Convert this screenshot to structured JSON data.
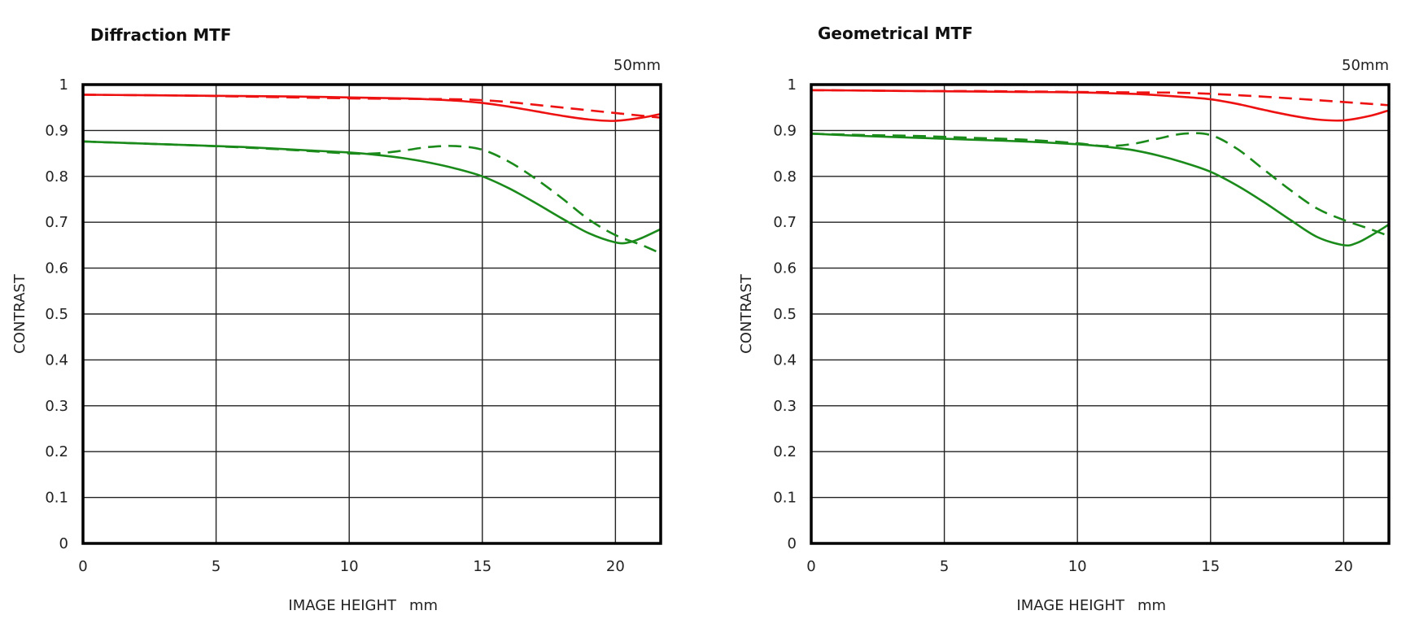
{
  "chart_data": [
    {
      "type": "line",
      "title": "Diffraction MTF",
      "subtitle": "50mm",
      "xlabel": "IMAGE HEIGHT",
      "xunit": "mm",
      "ylabel": "CONTRAST",
      "xlim": [
        0,
        21.7
      ],
      "ylim": [
        0,
        1
      ],
      "xticks": [
        "0",
        "5",
        "10",
        "15",
        "20"
      ],
      "yticks": [
        "0",
        "0.1",
        "0.2",
        "0.3",
        "0.4",
        "0.5",
        "0.6",
        "0.7",
        "0.8",
        "0.9",
        "1"
      ],
      "grid": true,
      "series": [
        {
          "color": "#ee1111",
          "style": "solid",
          "x": [
            0,
            2,
            4,
            6,
            8,
            10,
            12,
            13,
            14,
            15,
            16,
            17,
            18,
            19,
            20,
            21,
            21.7
          ],
          "y": [
            0.978,
            0.977,
            0.976,
            0.975,
            0.974,
            0.972,
            0.97,
            0.968,
            0.965,
            0.96,
            0.952,
            0.942,
            0.932,
            0.924,
            0.921,
            0.928,
            0.936
          ]
        },
        {
          "color": "#ee1111",
          "style": "dashed",
          "x": [
            0,
            2,
            4,
            6,
            8,
            10,
            12,
            14,
            15,
            16,
            17,
            18,
            19,
            20,
            21,
            21.7
          ],
          "y": [
            0.978,
            0.977,
            0.976,
            0.974,
            0.972,
            0.97,
            0.969,
            0.968,
            0.966,
            0.962,
            0.956,
            0.95,
            0.944,
            0.938,
            0.932,
            0.928
          ]
        },
        {
          "color": "#1a8a1a",
          "style": "solid",
          "x": [
            0,
            2,
            4,
            6,
            8,
            10,
            11,
            12,
            13,
            14,
            15,
            16,
            17,
            18,
            19,
            20,
            20.5,
            21,
            21.7
          ],
          "y": [
            0.876,
            0.872,
            0.868,
            0.864,
            0.858,
            0.852,
            0.847,
            0.84,
            0.83,
            0.817,
            0.8,
            0.774,
            0.742,
            0.708,
            0.676,
            0.656,
            0.656,
            0.666,
            0.685
          ]
        },
        {
          "color": "#1a8a1a",
          "style": "dashed",
          "x": [
            0,
            2,
            4,
            6,
            8,
            10,
            11,
            12,
            13,
            14,
            15,
            16,
            17,
            18,
            19,
            20,
            21,
            21.7
          ],
          "y": [
            0.876,
            0.872,
            0.868,
            0.863,
            0.857,
            0.85,
            0.85,
            0.856,
            0.864,
            0.866,
            0.858,
            0.832,
            0.795,
            0.752,
            0.706,
            0.672,
            0.65,
            0.632
          ]
        }
      ]
    },
    {
      "type": "line",
      "title": "Geometrical MTF",
      "subtitle": "50mm",
      "xlabel": "IMAGE HEIGHT",
      "xunit": "mm",
      "ylabel": "CONTRAST",
      "xlim": [
        0,
        21.7
      ],
      "ylim": [
        0,
        1
      ],
      "xticks": [
        "0",
        "5",
        "10",
        "15",
        "20"
      ],
      "yticks": [
        "0",
        "0.1",
        "0.2",
        "0.3",
        "0.4",
        "0.5",
        "0.6",
        "0.7",
        "0.8",
        "0.9",
        "1"
      ],
      "grid": true,
      "series": [
        {
          "color": "#ee1111",
          "style": "solid",
          "x": [
            0,
            2,
            4,
            6,
            8,
            10,
            12,
            13,
            14,
            15,
            16,
            17,
            18,
            19,
            20,
            21,
            21.7
          ],
          "y": [
            0.988,
            0.987,
            0.986,
            0.985,
            0.984,
            0.983,
            0.98,
            0.977,
            0.973,
            0.968,
            0.958,
            0.945,
            0.933,
            0.924,
            0.922,
            0.932,
            0.944
          ]
        },
        {
          "color": "#ee1111",
          "style": "dashed",
          "x": [
            0,
            2,
            4,
            6,
            8,
            10,
            12,
            14,
            16,
            18,
            20,
            21,
            21.7
          ],
          "y": [
            0.988,
            0.987,
            0.986,
            0.986,
            0.985,
            0.984,
            0.983,
            0.982,
            0.977,
            0.97,
            0.962,
            0.958,
            0.955
          ]
        },
        {
          "color": "#1a8a1a",
          "style": "solid",
          "x": [
            0,
            2,
            4,
            6,
            8,
            10,
            11,
            12,
            13,
            14,
            15,
            16,
            17,
            18,
            19,
            20,
            20.5,
            21,
            21.7
          ],
          "y": [
            0.893,
            0.888,
            0.884,
            0.88,
            0.876,
            0.87,
            0.865,
            0.858,
            0.846,
            0.83,
            0.81,
            0.78,
            0.744,
            0.705,
            0.668,
            0.65,
            0.655,
            0.67,
            0.695
          ]
        },
        {
          "color": "#1a8a1a",
          "style": "dashed",
          "x": [
            0,
            2,
            4,
            6,
            8,
            10,
            11,
            12,
            13,
            14,
            15,
            16,
            17,
            18,
            19,
            20,
            21,
            21.7
          ],
          "y": [
            0.893,
            0.89,
            0.888,
            0.884,
            0.88,
            0.872,
            0.866,
            0.87,
            0.882,
            0.893,
            0.89,
            0.86,
            0.815,
            0.77,
            0.73,
            0.705,
            0.685,
            0.67
          ]
        }
      ]
    }
  ]
}
